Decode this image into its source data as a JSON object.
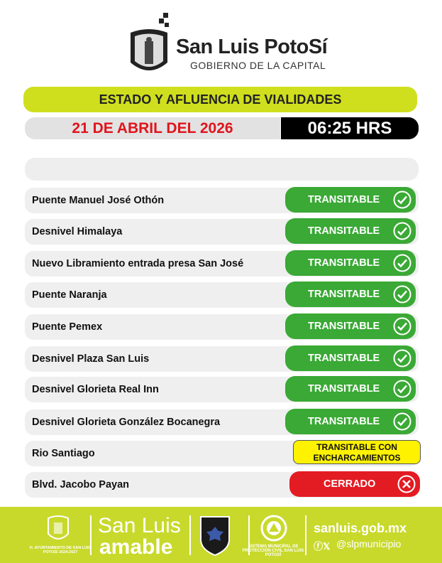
{
  "header": {
    "brand_title": "San Luis PotoSí",
    "brand_subtitle": "GOBIERNO DE LA CAPITAL"
  },
  "title": "ESTADO Y AFLUENCIA DE VIALIDADES",
  "date": "21 DE ABRIL DEL 2026",
  "time": "06:25 HRS",
  "roads": [
    {
      "name": "Puente Manuel José Othón",
      "status": "TRANSITABLE",
      "type": "ok"
    },
    {
      "name": "Desnivel Himalaya",
      "status": "TRANSITABLE",
      "type": "ok"
    },
    {
      "name": "Nuevo Libramiento entrada presa San José",
      "status": "TRANSITABLE",
      "type": "ok"
    },
    {
      "name": "Puente Naranja",
      "status": "TRANSITABLE",
      "type": "ok"
    },
    {
      "name": "Puente Pemex",
      "status": "TRANSITABLE",
      "type": "ok"
    },
    {
      "name": "Desnivel Plaza San Luis",
      "status": "TRANSITABLE",
      "type": "ok"
    },
    {
      "name": "Desnivel Glorieta Real Inn",
      "status": "TRANSITABLE",
      "type": "ok"
    },
    {
      "name": "Desnivel Glorieta González Bocanegra",
      "status": "TRANSITABLE",
      "type": "ok"
    },
    {
      "name": "Rio Santiago",
      "status": "TRANSITABLE CON ENCHARCAMIENTOS",
      "type": "warn"
    },
    {
      "name": "Blvd. Jacobo Payan",
      "status": "CERRADO",
      "type": "closed"
    }
  ],
  "footer": {
    "ayuntamiento": "H. AYUNTAMIENTO DE SAN LUIS POTOSÍ 2024-2027",
    "amable_line1": "San Luis",
    "amable_line2": "amable",
    "proteccion": "SISTEMA MUNICIPAL DE PROTECCIÓN CIVIL SAN LUIS POTOSÍ",
    "website": "sanluis.gob.mx",
    "social": "@slpmunicipio"
  },
  "colors": {
    "accent": "#cfdf1e",
    "ok": "#3aa935",
    "warn": "#fff200",
    "closed": "#e31b23",
    "date": "#e0141c"
  }
}
